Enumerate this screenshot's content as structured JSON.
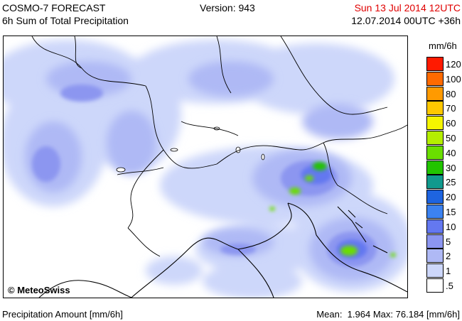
{
  "header": {
    "title_line1": "COSMO-7 FORECAST",
    "title_line2": "6h Sum of Total Precipitation",
    "version": "Version: 943",
    "valid_time": "Sun 13 Jul 2014 12UTC",
    "run_time": "12.07.2014 00UTC +36h"
  },
  "map": {
    "copyright": "© MeteoSwiss"
  },
  "legend": {
    "unit": "mm/6h",
    "levels": [
      {
        "label": "120",
        "color": "#ff1a00"
      },
      {
        "label": "100",
        "color": "#ff6a00"
      },
      {
        "label": "80",
        "color": "#ff9a00"
      },
      {
        "label": "70",
        "color": "#ffc800"
      },
      {
        "label": "60",
        "color": "#f5f500"
      },
      {
        "label": "50",
        "color": "#b4ee00"
      },
      {
        "label": "40",
        "color": "#6ade00"
      },
      {
        "label": "30",
        "color": "#22c400"
      },
      {
        "label": "25",
        "color": "#11998d"
      },
      {
        "label": "20",
        "color": "#1e64e0"
      },
      {
        "label": "15",
        "color": "#3c82f0"
      },
      {
        "label": "10",
        "color": "#6478f0"
      },
      {
        "label": "5",
        "color": "#8c96f0"
      },
      {
        "label": "2",
        "color": "#afb9f5"
      },
      {
        "label": "1",
        "color": "#cdd7fa"
      },
      {
        "label": ".5",
        "color": "#ffffff"
      }
    ]
  },
  "footer": {
    "left": "Precipitation Amount [mm/6h]",
    "mean_label": "Mean:",
    "mean_value": "1.964",
    "max_label": "Max:",
    "max_value": "76.184",
    "unit": "[mm/6h]"
  }
}
